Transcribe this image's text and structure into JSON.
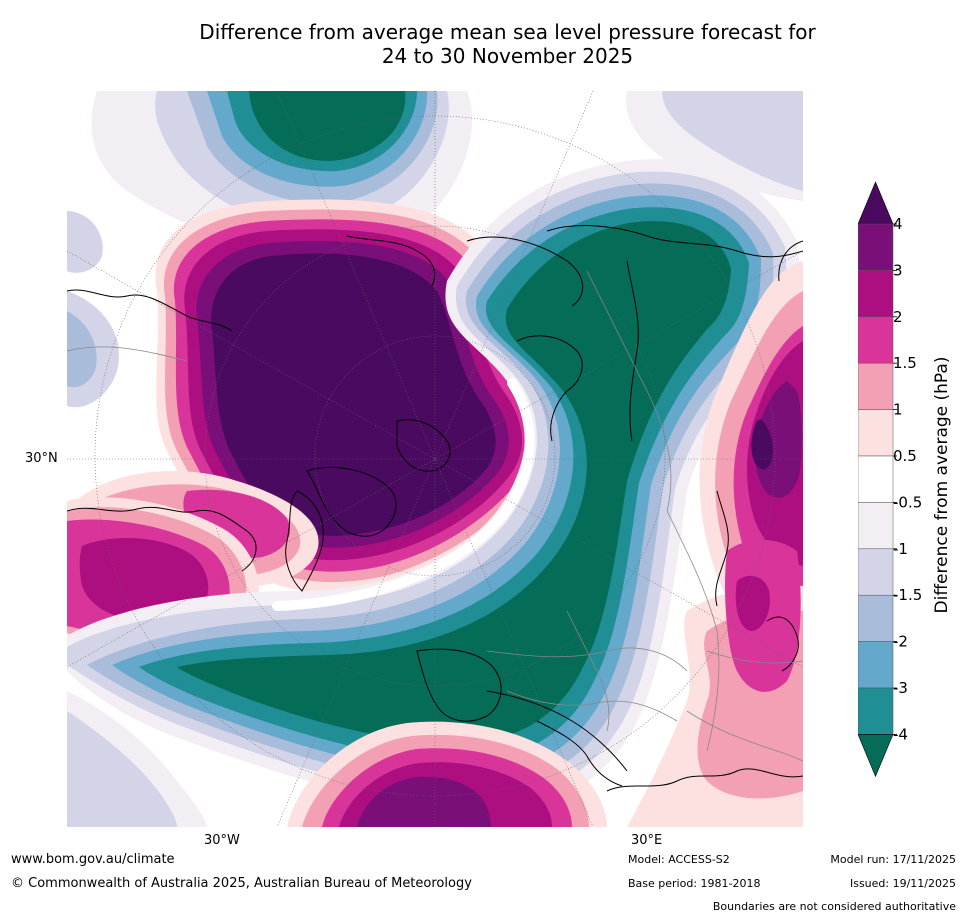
{
  "title": {
    "line1": "Difference from average mean sea level pressure forecast for",
    "line2": "24 to 30 November 2025"
  },
  "map": {
    "lat_label": "30°N",
    "lon_labels": [
      "30°W",
      "30°E"
    ],
    "colors": {
      "p4": "#4a0a60",
      "p3": "#7a0f7a",
      "p2": "#ad0f80",
      "p15": "#d8349a",
      "p1": "#f4a0b4",
      "p05": "#fde1e0",
      "z": "#ffffff",
      "n05": "#f3eef4",
      "n1": "#d3d4e8",
      "n15": "#a9bddb",
      "n2": "#64a8cc",
      "n3": "#1f8f95",
      "n4": "#056c58",
      "land_line": "#000000",
      "border_line": "#888888",
      "grid_line": "#666666"
    }
  },
  "colorbar": {
    "title": "Difference from average (hPa)",
    "ticks": [
      "4",
      "3",
      "2",
      "1.5",
      "1",
      "0.5",
      "-0.5",
      "-1",
      "-1.5",
      "-2",
      "-3",
      "-4"
    ],
    "colors": [
      "#7a0f7a",
      "#ad0f80",
      "#d8349a",
      "#f4a0b4",
      "#fde1e0",
      "#ffffff",
      "#f3eef4",
      "#d3d4e8",
      "#a9bddb",
      "#64a8cc",
      "#1f8f95"
    ],
    "top_color": "#4a0a60",
    "bottom_color": "#056c58"
  },
  "footer": {
    "website": "www.bom.gov.au/climate",
    "copyright": "© Commonwealth of Australia 2025, Australian Bureau of Meteorology",
    "model": "Model: ACCESS-S2",
    "base_period": "Base period: 1981-2018",
    "model_run": "Model run: 17/11/2025",
    "issued": "Issued: 19/11/2025",
    "disclaimer": "Boundaries are not considered authoritative"
  }
}
